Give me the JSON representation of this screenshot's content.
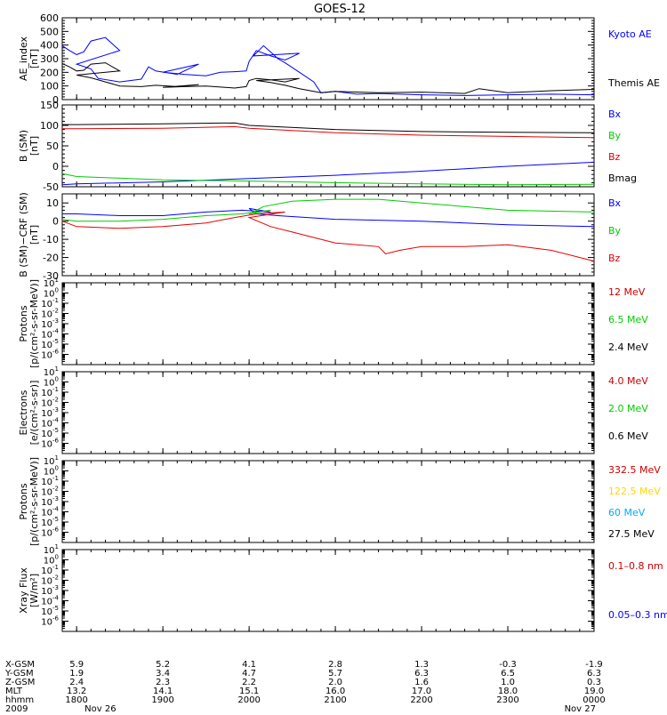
{
  "title": "GOES-12",
  "colors": {
    "black": "#000000",
    "blue": "#0000ff",
    "red": "#e60000",
    "green": "#00cc00",
    "yellow": "#ffd700",
    "cyan": "#00aaff"
  },
  "chart_data": [
    {
      "type": "line",
      "id": "ae",
      "ylabel": [
        "AE_index",
        "[nT]"
      ],
      "ylim": [
        0,
        600
      ],
      "yticks": [
        0,
        100,
        200,
        300,
        400,
        500,
        600
      ],
      "legend": [
        {
          "label": "Kyoto AE",
          "color": "#0000ff"
        },
        {
          "label": "Themis AE",
          "color": "#000000"
        }
      ],
      "series": [
        {
          "name": "Kyoto AE",
          "color": "#0000ff",
          "x": [
            1750,
            1755,
            1760,
            1765,
            1770,
            1780,
            1790,
            1800,
            1810,
            1815,
            1830,
            1845,
            1850,
            1855,
            1870,
            1885,
            1900,
            1915,
            1930,
            1940,
            1950,
            1958,
            1960,
            1965,
            1975,
            1985,
            1995,
            2003,
            2010,
            2017,
            2020,
            2025,
            2035,
            2045,
            2050,
            2100,
            2115,
            2130,
            2200,
            2230,
            2300,
            2330,
            2400
          ],
          "y": [
            395,
            360,
            330,
            350,
            430,
            455,
            360,
            260,
            225,
            155,
            130,
            150,
            240,
            210,
            185,
            260,
            200,
            185,
            175,
            200,
            205,
            210,
            280,
            360,
            320,
            290,
            340,
            320,
            395,
            330,
            300,
            270,
            200,
            130,
            50,
            60,
            40,
            45,
            35,
            30,
            35,
            40,
            35
          ]
        },
        {
          "name": "Themis AE",
          "color": "#000000",
          "x": [
            1750,
            1755,
            1760,
            1765,
            1770,
            1780,
            1790,
            1800,
            1810,
            1820,
            1830,
            1845,
            1855,
            1870,
            1885,
            1900,
            1915,
            1930,
            1950,
            1958,
            1960,
            1965,
            1975,
            1985,
            1995,
            2005,
            2015,
            2025,
            2035,
            2045,
            2050,
            2100,
            2130,
            2200,
            2230,
            2240,
            2300,
            2330,
            2400
          ],
          "y": [
            265,
            240,
            210,
            215,
            260,
            270,
            210,
            180,
            160,
            130,
            100,
            95,
            105,
            95,
            110,
            90,
            95,
            100,
            85,
            95,
            140,
            155,
            145,
            130,
            155,
            140,
            125,
            105,
            80,
            60,
            50,
            60,
            50,
            55,
            45,
            80,
            50,
            65,
            75
          ]
        }
      ]
    },
    {
      "type": "line",
      "id": "bsm",
      "ylabel": [
        "B (SM)",
        "[nT]"
      ],
      "ylim": [
        -50,
        150
      ],
      "yticks": [
        -50,
        0,
        50,
        100,
        150
      ],
      "legend": [
        {
          "label": "Bx",
          "color": "#0000ff"
        },
        {
          "label": "By",
          "color": "#00cc00"
        },
        {
          "label": "Bz",
          "color": "#e60000"
        },
        {
          "label": "Bmag",
          "color": "#000000"
        }
      ],
      "series": [
        {
          "name": "Bx",
          "color": "#0000ff",
          "x": [
            1750,
            1800,
            1900,
            2000,
            2100,
            2200,
            2300,
            2400
          ],
          "y": [
            -45,
            -43,
            -38,
            -30,
            -22,
            -12,
            0,
            10
          ]
        },
        {
          "name": "By",
          "color": "#00cc00",
          "x": [
            1750,
            1800,
            1900,
            2000,
            2100,
            2200,
            2300,
            2400
          ],
          "y": [
            -18,
            -25,
            -33,
            -36,
            -40,
            -43,
            -45,
            -44
          ]
        },
        {
          "name": "Bz",
          "color": "#e60000",
          "x": [
            1750,
            1800,
            1900,
            1950,
            2000,
            2100,
            2200,
            2300,
            2400
          ],
          "y": [
            92,
            92,
            93,
            97,
            93,
            82,
            76,
            73,
            70
          ]
        },
        {
          "name": "Bmag",
          "color": "#000000",
          "x": [
            1750,
            1800,
            1900,
            1950,
            2000,
            2100,
            2200,
            2300,
            2400
          ],
          "y": [
            102,
            102,
            104,
            106,
            100,
            90,
            85,
            83,
            82
          ]
        }
      ]
    },
    {
      "type": "line",
      "id": "bdiff",
      "ylabel": [
        "B (SM)−CRF (SM)",
        "[nT]"
      ],
      "ylim": [
        -30,
        15
      ],
      "yticks": [
        -30,
        -20,
        -10,
        0,
        10
      ],
      "legend": [
        {
          "label": "Bx",
          "color": "#0000ff"
        },
        {
          "label": "By",
          "color": "#00cc00"
        },
        {
          "label": "Bz",
          "color": "#e60000"
        }
      ],
      "series": [
        {
          "name": "Bx",
          "color": "#0000ff",
          "x": [
            1750,
            1800,
            1830,
            1900,
            1930,
            1955,
            1975,
            2000,
            2005,
            2020,
            2100,
            2200,
            2300,
            2400
          ],
          "y": [
            4,
            4,
            3,
            3,
            5,
            6,
            5,
            7,
            4,
            3,
            1,
            0,
            -2,
            -3
          ]
        },
        {
          "name": "By",
          "color": "#00cc00",
          "x": [
            1750,
            1800,
            1830,
            1900,
            1930,
            1955,
            1975,
            2000,
            2010,
            2030,
            2100,
            2130,
            2200,
            2300,
            2400
          ],
          "y": [
            1,
            0,
            0,
            1,
            3,
            4,
            6,
            4,
            8,
            11,
            12,
            12,
            10,
            6,
            5
          ]
        },
        {
          "name": "Bz",
          "color": "#e60000",
          "x": [
            1750,
            1800,
            1830,
            1900,
            1930,
            1950,
            1965,
            1985,
            2000,
            2015,
            2030,
            2100,
            2130,
            2135,
            2145,
            2200,
            2230,
            2300,
            2330,
            2345,
            2400
          ],
          "y": [
            0,
            -3,
            -4,
            -3,
            -1,
            2,
            4,
            5,
            2,
            -3,
            -6,
            -12,
            -14,
            -18,
            -16,
            -14,
            -14,
            -13,
            -16,
            -19,
            -22
          ]
        }
      ]
    },
    {
      "type": "line",
      "id": "protons_low",
      "ylabel": [
        "Protons",
        "[p/(cm²-s-sr-MeV)]"
      ],
      "log": true,
      "ylim_exp": [
        -7,
        1
      ],
      "legend": [
        {
          "label": "12 MeV",
          "color": "#cc0000"
        },
        {
          "label": "6.5 MeV",
          "color": "#00cc00"
        },
        {
          "label": "2.4 MeV",
          "color": "#000000"
        }
      ],
      "series": []
    },
    {
      "type": "line",
      "id": "electrons",
      "ylabel": [
        "Electrons",
        "[e/(cm²-s-sr)]"
      ],
      "log": true,
      "ylim_exp": [
        -7,
        1
      ],
      "legend": [
        {
          "label": "4.0 MeV",
          "color": "#cc0000"
        },
        {
          "label": "2.0 MeV",
          "color": "#00cc00"
        },
        {
          "label": "0.6 MeV",
          "color": "#000000"
        }
      ],
      "series": []
    },
    {
      "type": "line",
      "id": "protons_high",
      "ylabel": [
        "Protons",
        "[p/(cm²-s-sr-MeV)]"
      ],
      "log": true,
      "ylim_exp": [
        -7,
        1
      ],
      "legend": [
        {
          "label": "332.5 MeV",
          "color": "#cc0000"
        },
        {
          "label": "122.5 MeV",
          "color": "#ffd700"
        },
        {
          "label": "60 MeV",
          "color": "#00aaff"
        },
        {
          "label": "27.5 MeV",
          "color": "#000000"
        }
      ],
      "series": []
    },
    {
      "type": "line",
      "id": "xray",
      "ylabel": [
        "Xray  Flux",
        "[W/m²]"
      ],
      "log": true,
      "ylim_exp": [
        -7,
        1
      ],
      "legend": [
        {
          "label": "0.1–0.8 nm",
          "color": "#cc0000"
        },
        {
          "label": "0.05–0.3 nm",
          "color": "#0000ff"
        }
      ],
      "series": []
    }
  ],
  "xaxis": {
    "row_labels": [
      "X-GSM",
      "Y-GSM",
      "Z-GSM",
      "MLT",
      "hhmm",
      "2009"
    ],
    "columns": [
      {
        "values": [
          "5.9",
          "1.9",
          "2.4",
          "13.2",
          "1800",
          "Nov 26"
        ]
      },
      {
        "values": [
          "5.2",
          "3.4",
          "2.3",
          "14.1",
          "1900",
          ""
        ]
      },
      {
        "values": [
          "4.1",
          "4.7",
          "2.2",
          "15.1",
          "2000",
          ""
        ]
      },
      {
        "values": [
          "2.8",
          "5.7",
          "2.0",
          "16.0",
          "2100",
          ""
        ]
      },
      {
        "values": [
          "1.3",
          "6.3",
          "1.6",
          "17.0",
          "2200",
          ""
        ]
      },
      {
        "values": [
          "-0.3",
          "6.5",
          "1.0",
          "18.0",
          "2300",
          ""
        ]
      },
      {
        "values": [
          "-1.9",
          "6.3",
          "0.3",
          "19.0",
          "0000",
          "Nov 27"
        ]
      }
    ]
  }
}
